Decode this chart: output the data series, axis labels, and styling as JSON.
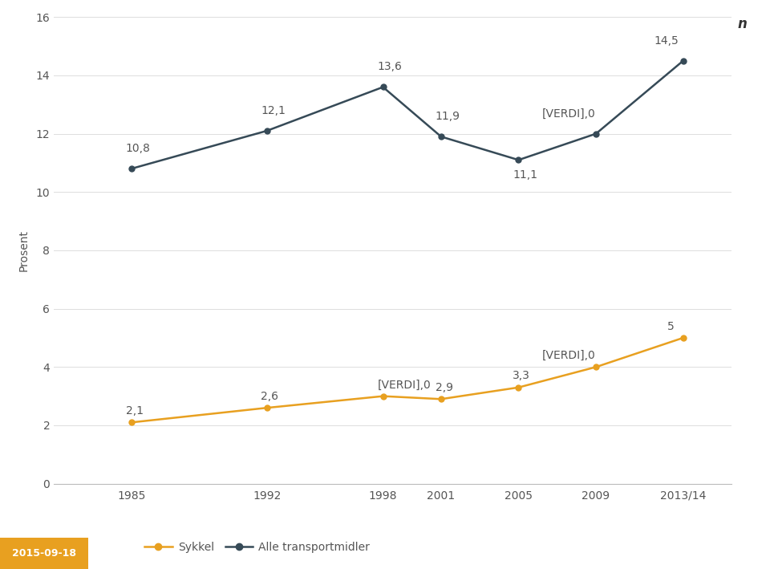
{
  "years": [
    1985,
    1992,
    1998,
    2001,
    2005,
    2009,
    "2013/14"
  ],
  "years_numeric": [
    1985,
    1992,
    1998,
    2001,
    2005,
    2009,
    2013.5
  ],
  "sykkel": [
    2.1,
    2.6,
    3.0,
    2.9,
    3.3,
    4.0,
    5.0
  ],
  "alle": [
    10.8,
    12.1,
    13.6,
    11.9,
    11.1,
    12.0,
    14.5
  ],
  "sykkel_labels": [
    "2,1",
    "2,6",
    "[VERDI],0",
    "2,9",
    "3,3",
    "[VERDI],0",
    "5"
  ],
  "alle_labels": [
    "10,8",
    "12,1",
    "13,6",
    "11,9",
    "11,1",
    "[VERDI],0",
    "14,5"
  ],
  "sykkel_label_ha": [
    "left",
    "left",
    "left",
    "left",
    "left",
    "left",
    "left"
  ],
  "alle_label_ha": [
    "left",
    "left",
    "left",
    "left",
    "left",
    "left",
    "left"
  ],
  "sykkel_color": "#E8A020",
  "alle_color": "#364a57",
  "label_color": "#555555",
  "ylabel": "Prosent",
  "ylim": [
    0,
    16
  ],
  "yticks": [
    0,
    2,
    4,
    6,
    8,
    10,
    12,
    14,
    16
  ],
  "xlim": [
    1981,
    2016
  ],
  "bg_color": "#FFFFFF",
  "grid_color": "#DDDDDD",
  "footer_bg_color": "#C8C8C8",
  "footer_orange_color": "#E8A020",
  "footer_text": "2015-09-18",
  "legend_sykkel": "Sykkel",
  "legend_alle": "Alle transportmidler",
  "top_right_label": "n",
  "font_size": 10,
  "marker_size": 5,
  "line_width": 1.8
}
